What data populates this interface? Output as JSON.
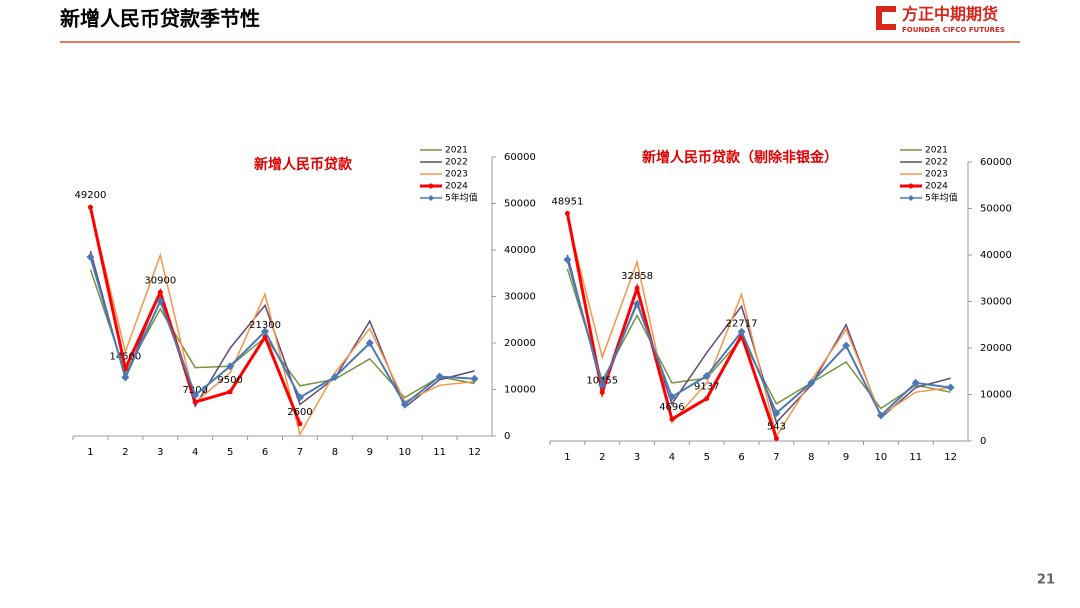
{
  "header": {
    "title": "新增人民币贷款季节性",
    "logo": "方正中期期货",
    "logo_en": "FOUNDER CIFCO FUTURES"
  },
  "page_number": "21",
  "chart_data": [
    {
      "type": "line",
      "title": "新增人民币贷款",
      "categories": [
        "1",
        "2",
        "3",
        "4",
        "5",
        "6",
        "7",
        "8",
        "9",
        "10",
        "11",
        "12"
      ],
      "ylim": [
        0,
        60000
      ],
      "yticks": [
        0,
        10000,
        20000,
        30000,
        40000,
        50000,
        60000
      ],
      "legend": "upper right",
      "series": [
        {
          "name": "2021",
          "color": "#77933c",
          "values": [
            35800,
            13600,
            27300,
            14700,
            15000,
            21200,
            10800,
            12200,
            16600,
            8262,
            12700,
            11300
          ]
        },
        {
          "name": "2022",
          "color": "#604a7b",
          "values": [
            39800,
            12300,
            31300,
            6454,
            18900,
            28100,
            6790,
            12500,
            24700,
            6152,
            12100,
            14000
          ]
        },
        {
          "name": "2023",
          "color": "#f79646",
          "values": [
            49000,
            18100,
            38900,
            7188,
            13600,
            30500,
            345,
            13600,
            23100,
            7384,
            10900,
            11700
          ]
        },
        {
          "name": "2024",
          "color": "#ff0000",
          "values": [
            49200,
            14500,
            30900,
            7300,
            9500,
            21300,
            2600,
            null,
            null,
            null,
            null,
            null
          ]
        },
        {
          "name": "5年均值",
          "color": "#4a7ab5",
          "values": [
            38500,
            12600,
            29000,
            8800,
            15000,
            22500,
            8300,
            12700,
            20000,
            6800,
            12800,
            12300
          ]
        }
      ]
    },
    {
      "type": "line",
      "title": "新增人民币贷款（剔除非银金）",
      "categories": [
        "1",
        "2",
        "3",
        "4",
        "5",
        "6",
        "7",
        "8",
        "9",
        "10",
        "11",
        "12"
      ],
      "ylim": [
        0,
        60000
      ],
      "yticks": [
        0,
        10000,
        20000,
        30000,
        40000,
        50000,
        60000
      ],
      "legend": "upper right",
      "series": [
        {
          "name": "2021",
          "color": "#77933c",
          "values": [
            37000,
            13000,
            27000,
            12500,
            13500,
            22000,
            8000,
            12500,
            17000,
            7000,
            12000,
            10500
          ]
        },
        {
          "name": "2022",
          "color": "#604a7b",
          "values": [
            40000,
            11000,
            30000,
            8000,
            19000,
            29000,
            4000,
            12000,
            25000,
            5000,
            11500,
            13500
          ]
        },
        {
          "name": "2023",
          "color": "#f79646",
          "values": [
            48000,
            18000,
            38500,
            4000,
            12500,
            31500,
            1000,
            13000,
            24000,
            5500,
            10500,
            11500
          ]
        },
        {
          "name": "2024",
          "color": "#ff0000",
          "values": [
            48951,
            10455,
            32858,
            4696,
            9137,
            22717,
            543,
            null,
            null,
            null,
            null,
            null
          ]
        },
        {
          "name": "5年均值",
          "color": "#4a7ab5",
          "values": [
            39000,
            12000,
            29500,
            9500,
            14000,
            23500,
            6000,
            12500,
            20500,
            5500,
            12500,
            11500
          ]
        }
      ]
    }
  ]
}
